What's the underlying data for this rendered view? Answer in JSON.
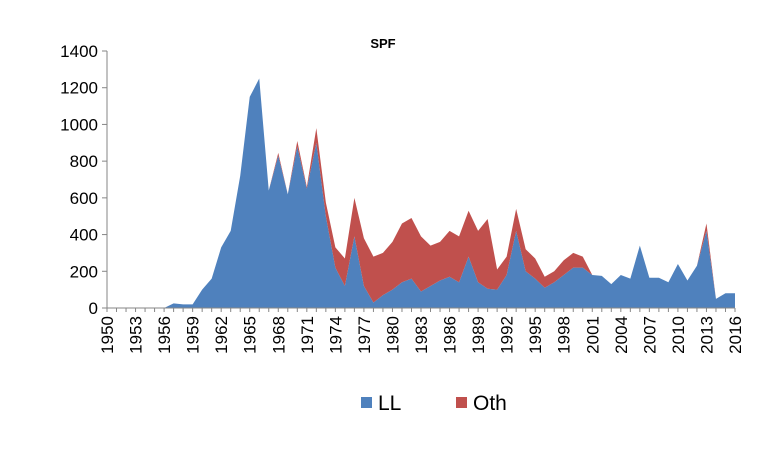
{
  "chart_data": {
    "type": "area",
    "stacked": true,
    "title": "SPF",
    "xlabel": "",
    "ylabel": "",
    "ylim": [
      0,
      1400
    ],
    "yticks": [
      0,
      200,
      400,
      600,
      800,
      1000,
      1200,
      1400
    ],
    "xlim": [
      1950,
      2016
    ],
    "xticks": [
      1950,
      1953,
      1956,
      1959,
      1962,
      1965,
      1968,
      1971,
      1974,
      1977,
      1980,
      1983,
      1986,
      1989,
      1992,
      1995,
      1998,
      2001,
      2004,
      2007,
      2010,
      2013,
      2016
    ],
    "grid": false,
    "legend_position": "bottom",
    "x": [
      1950,
      1951,
      1952,
      1953,
      1954,
      1955,
      1956,
      1957,
      1958,
      1959,
      1960,
      1961,
      1962,
      1963,
      1964,
      1965,
      1966,
      1967,
      1968,
      1969,
      1970,
      1971,
      1972,
      1973,
      1974,
      1975,
      1976,
      1977,
      1978,
      1979,
      1980,
      1981,
      1982,
      1983,
      1984,
      1985,
      1986,
      1987,
      1988,
      1989,
      1990,
      1991,
      1992,
      1993,
      1994,
      1995,
      1996,
      1997,
      1998,
      1999,
      2000,
      2001,
      2002,
      2003,
      2004,
      2005,
      2006,
      2007,
      2008,
      2009,
      2010,
      2011,
      2012,
      2013,
      2014,
      2015,
      2016
    ],
    "series": [
      {
        "name": "LL",
        "color": "#4F81BD",
        "values": [
          0,
          0,
          0,
          0,
          0,
          0,
          0,
          25,
          20,
          20,
          100,
          160,
          330,
          420,
          720,
          1150,
          1250,
          640,
          830,
          620,
          880,
          650,
          900,
          500,
          220,
          120,
          390,
          120,
          30,
          70,
          100,
          140,
          160,
          90,
          120,
          150,
          170,
          140,
          280,
          140,
          105,
          100,
          180,
          420,
          200,
          160,
          110,
          140,
          180,
          220,
          220,
          180,
          175,
          130,
          180,
          160,
          340,
          165,
          165,
          140,
          240,
          150,
          230,
          420,
          50,
          80,
          80
        ]
      },
      {
        "name": "Oth",
        "color": "#C0504D",
        "values": [
          0,
          0,
          0,
          0,
          0,
          0,
          0,
          0,
          0,
          0,
          0,
          0,
          0,
          0,
          0,
          0,
          0,
          0,
          15,
          0,
          30,
          10,
          80,
          75,
          110,
          150,
          210,
          260,
          250,
          230,
          260,
          320,
          330,
          300,
          220,
          210,
          250,
          250,
          250,
          280,
          380,
          110,
          100,
          120,
          120,
          110,
          60,
          60,
          80,
          80,
          60,
          0,
          0,
          0,
          0,
          0,
          0,
          0,
          0,
          0,
          0,
          0,
          0,
          40,
          0,
          0,
          0
        ]
      }
    ]
  }
}
